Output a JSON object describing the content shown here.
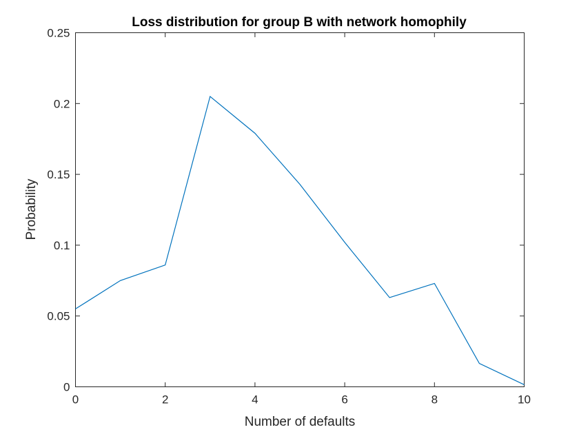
{
  "chart_data": {
    "type": "line",
    "title": "Loss distribution for group B with network homophily",
    "xlabel": "Number of defaults",
    "ylabel": "Probability",
    "xlim": [
      0,
      10
    ],
    "ylim": [
      0,
      0.25
    ],
    "xticks": [
      0,
      2,
      4,
      6,
      8,
      10
    ],
    "xtick_labels": [
      "0",
      "2",
      "4",
      "6",
      "8",
      "10"
    ],
    "yticks": [
      0,
      0.05,
      0.1,
      0.15,
      0.2,
      0.25
    ],
    "ytick_labels": [
      "0",
      "0.05",
      "0.1",
      "0.15",
      "0.2",
      "0.25"
    ],
    "grid": false,
    "series": [
      {
        "x": [
          0,
          1,
          2,
          3,
          4,
          5,
          6,
          7,
          8,
          9,
          10
        ],
        "values": [
          0.055,
          0.075,
          0.086,
          0.205,
          0.179,
          0.143,
          0.102,
          0.063,
          0.073,
          0.0165,
          0.0015
        ],
        "color": "#0072BD"
      }
    ]
  }
}
